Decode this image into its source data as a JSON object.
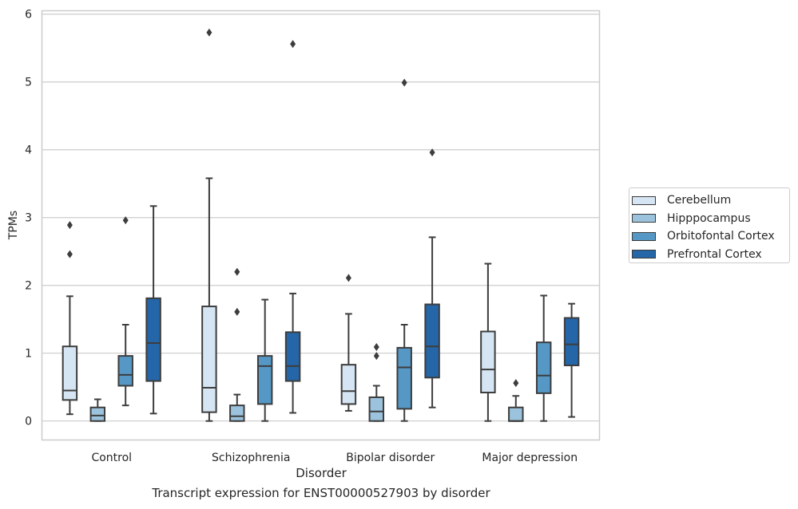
{
  "chart_data": {
    "type": "box",
    "title": "",
    "caption": "Transcript expression for ENST00000527903 by disorder",
    "xlabel": "Disorder",
    "ylabel": "TPMs",
    "ylim": [
      -0.28,
      6.05
    ],
    "yticks": [
      0,
      1,
      2,
      3,
      4,
      5,
      6
    ],
    "grid": true,
    "legend_position": "right",
    "categories": [
      "Control",
      "Schizophrenia",
      "Bipolar disorder",
      "Major depression"
    ],
    "series": [
      {
        "name": "Cerebellum",
        "color": "#d6e5f3",
        "boxes": [
          {
            "min": 0.1,
            "q1": 0.31,
            "median": 0.45,
            "q3": 1.1,
            "max": 1.84,
            "outliers": [
              2.46,
              2.89
            ]
          },
          {
            "min": 0.0,
            "q1": 0.13,
            "median": 0.49,
            "q3": 1.69,
            "max": 3.58,
            "outliers": [
              5.73
            ]
          },
          {
            "min": 0.15,
            "q1": 0.25,
            "median": 0.44,
            "q3": 0.83,
            "max": 1.58,
            "outliers": [
              2.11
            ]
          },
          {
            "min": 0.0,
            "q1": 0.42,
            "median": 0.76,
            "q3": 1.32,
            "max": 2.32,
            "outliers": []
          }
        ]
      },
      {
        "name": "Hipppocampus",
        "color": "#9cc3dd",
        "boxes": [
          {
            "min": 0.0,
            "q1": 0.0,
            "median": 0.08,
            "q3": 0.2,
            "max": 0.32,
            "outliers": []
          },
          {
            "min": 0.0,
            "q1": 0.0,
            "median": 0.07,
            "q3": 0.23,
            "max": 0.39,
            "outliers": [
              1.61,
              2.2
            ]
          },
          {
            "min": 0.0,
            "q1": 0.0,
            "median": 0.14,
            "q3": 0.35,
            "max": 0.52,
            "outliers": [
              0.96,
              1.09
            ]
          },
          {
            "min": 0.0,
            "q1": 0.0,
            "median": 0.0,
            "q3": 0.2,
            "max": 0.37,
            "outliers": [
              0.56
            ]
          }
        ]
      },
      {
        "name": "Orbitofontal Cortex",
        "color": "#5598c6",
        "boxes": [
          {
            "min": 0.23,
            "q1": 0.52,
            "median": 0.68,
            "q3": 0.96,
            "max": 1.42,
            "outliers": [
              2.96
            ]
          },
          {
            "min": 0.0,
            "q1": 0.25,
            "median": 0.81,
            "q3": 0.96,
            "max": 1.79,
            "outliers": []
          },
          {
            "min": 0.0,
            "q1": 0.18,
            "median": 0.79,
            "q3": 1.08,
            "max": 1.42,
            "outliers": [
              4.99
            ]
          },
          {
            "min": 0.0,
            "q1": 0.41,
            "median": 0.67,
            "q3": 1.16,
            "max": 1.85,
            "outliers": []
          }
        ]
      },
      {
        "name": "Prefrontal Cortex",
        "color": "#2466a8",
        "boxes": [
          {
            "min": 0.11,
            "q1": 0.59,
            "median": 1.15,
            "q3": 1.81,
            "max": 3.17,
            "outliers": []
          },
          {
            "min": 0.12,
            "q1": 0.59,
            "median": 0.81,
            "q3": 1.31,
            "max": 1.88,
            "outliers": [
              5.56
            ]
          },
          {
            "min": 0.2,
            "q1": 0.64,
            "median": 1.1,
            "q3": 1.72,
            "max": 2.71,
            "outliers": [
              3.96
            ]
          },
          {
            "min": 0.06,
            "q1": 0.82,
            "median": 1.13,
            "q3": 1.52,
            "max": 1.73,
            "outliers": []
          }
        ]
      }
    ]
  }
}
